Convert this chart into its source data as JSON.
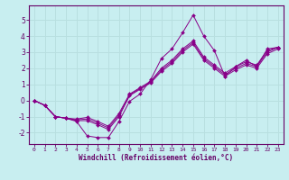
{
  "xlabel": "Windchill (Refroidissement éolien,°C)",
  "bg_color": "#c8eef0",
  "line_color": "#880088",
  "grid_color": "#b8dfe0",
  "axis_color": "#660066",
  "xlim": [
    -0.5,
    23.5
  ],
  "ylim": [
    -2.7,
    5.9
  ],
  "x_ticks": [
    0,
    1,
    2,
    3,
    4,
    5,
    6,
    7,
    8,
    9,
    10,
    11,
    12,
    13,
    14,
    15,
    16,
    17,
    18,
    19,
    20,
    21,
    22,
    23
  ],
  "y_ticks": [
    -2,
    -1,
    0,
    1,
    2,
    3,
    4,
    5
  ],
  "series": [
    [
      0.0,
      -0.3,
      -1.0,
      -1.1,
      -1.3,
      -2.2,
      -2.3,
      -2.3,
      -1.3,
      -0.05,
      0.4,
      1.3,
      2.6,
      3.2,
      4.2,
      5.3,
      4.0,
      3.1,
      1.5,
      2.1,
      2.5,
      2.1,
      3.2,
      3.3
    ],
    [
      0.0,
      -0.3,
      -1.0,
      -1.1,
      -1.25,
      -1.25,
      -1.5,
      -1.8,
      -1.0,
      0.3,
      0.7,
      1.1,
      1.8,
      2.3,
      3.0,
      3.5,
      2.5,
      2.0,
      1.5,
      1.9,
      2.2,
      2.0,
      2.9,
      3.2
    ],
    [
      0.0,
      -0.3,
      -1.0,
      -1.1,
      -1.2,
      -1.15,
      -1.4,
      -1.7,
      -0.9,
      0.35,
      0.75,
      1.15,
      1.9,
      2.4,
      3.1,
      3.6,
      2.6,
      2.1,
      1.6,
      2.0,
      2.3,
      2.1,
      3.0,
      3.3
    ],
    [
      0.0,
      -0.3,
      -1.0,
      -1.1,
      -1.15,
      -1.05,
      -1.3,
      -1.6,
      -0.8,
      0.4,
      0.8,
      1.2,
      2.0,
      2.5,
      3.2,
      3.7,
      2.7,
      2.2,
      1.7,
      2.1,
      2.4,
      2.2,
      3.1,
      3.3
    ]
  ]
}
